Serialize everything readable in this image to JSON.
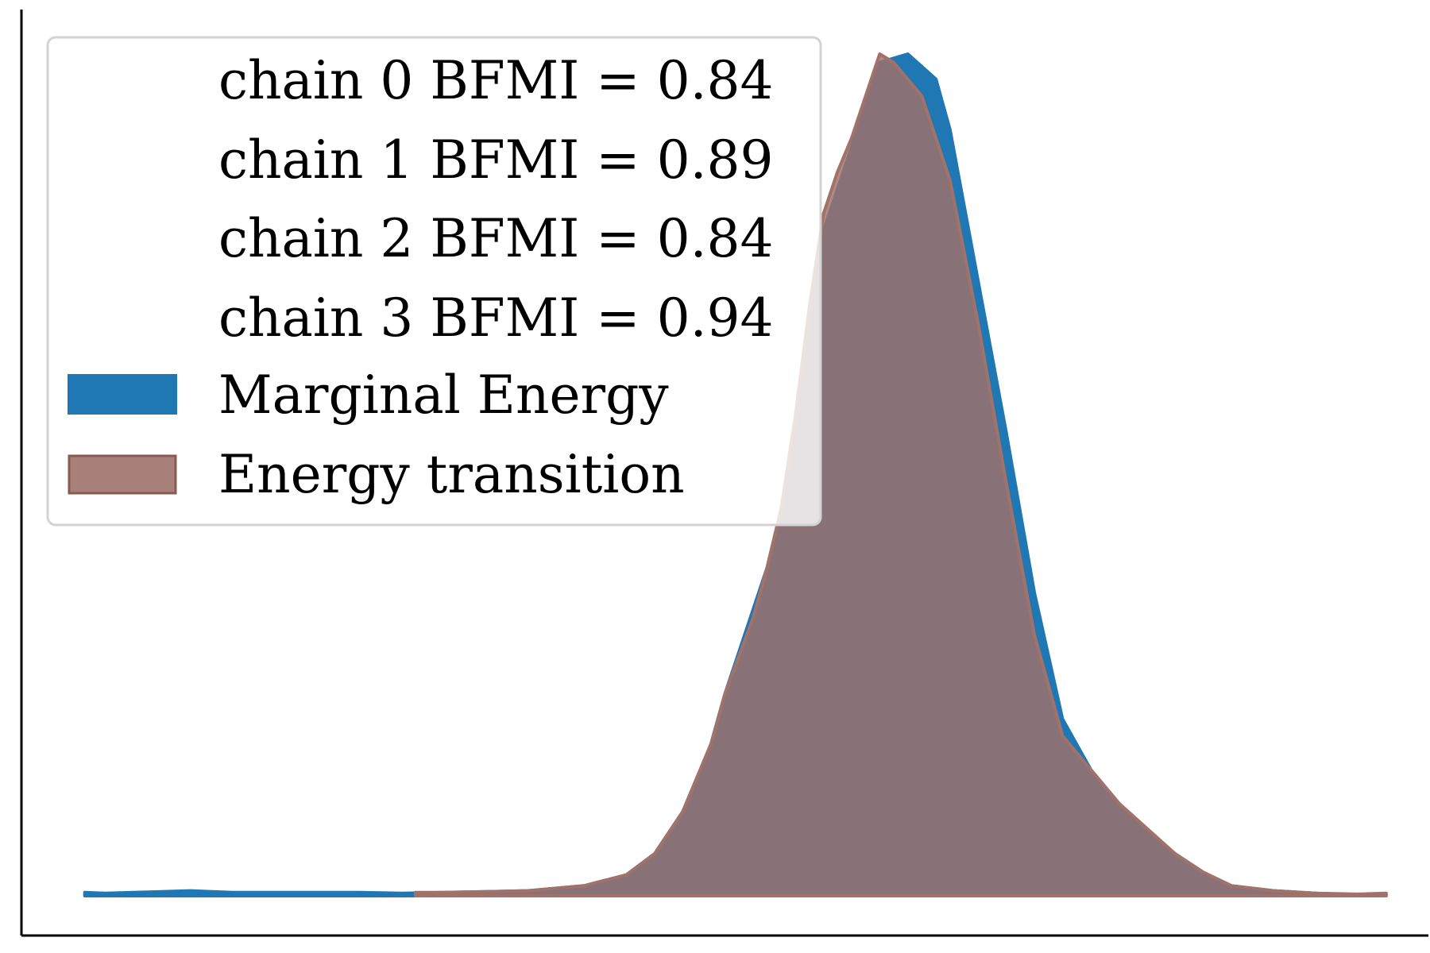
{
  "chart_data": {
    "type": "area",
    "title": "",
    "xlabel": "",
    "ylabel": "",
    "x_ticks": "hidden",
    "y_ticks": "hidden",
    "grid": false,
    "legend_placement": "top-left",
    "series": [
      {
        "name": "Marginal Energy",
        "color": "#1f77b4",
        "x": [
          0.045,
          0.06,
          0.08,
          0.1,
          0.12,
          0.15,
          0.18,
          0.21,
          0.24,
          0.27,
          0.3,
          0.33,
          0.36,
          0.4,
          0.43,
          0.45,
          0.47,
          0.49,
          0.5,
          0.52,
          0.53,
          0.54,
          0.55,
          0.56,
          0.57,
          0.58,
          0.59,
          0.61,
          0.63,
          0.65,
          0.66,
          0.68,
          0.7,
          0.72,
          0.74,
          0.76,
          0.78,
          0.8,
          0.82,
          0.84,
          0.86,
          0.89,
          0.92,
          0.95
        ],
        "y": [
          0.004,
          0.003,
          0.004,
          0.005,
          0.006,
          0.004,
          0.004,
          0.004,
          0.004,
          0.003,
          0.004,
          0.005,
          0.006,
          0.012,
          0.025,
          0.05,
          0.1,
          0.18,
          0.24,
          0.34,
          0.39,
          0.46,
          0.56,
          0.68,
          0.79,
          0.84,
          0.89,
          0.99,
          1.0,
          0.97,
          0.91,
          0.73,
          0.55,
          0.36,
          0.21,
          0.15,
          0.11,
          0.075,
          0.05,
          0.028,
          0.012,
          0.006,
          0.003,
          0.0
        ],
        "legend_swatch": "filled"
      },
      {
        "name": "Energy transition",
        "color": "#a0726a",
        "x": [
          0.28,
          0.3,
          0.33,
          0.36,
          0.4,
          0.43,
          0.45,
          0.47,
          0.49,
          0.5,
          0.52,
          0.53,
          0.54,
          0.55,
          0.56,
          0.57,
          0.58,
          0.59,
          0.61,
          0.62,
          0.64,
          0.66,
          0.68,
          0.7,
          0.72,
          0.74,
          0.76,
          0.78,
          0.8,
          0.82,
          0.84,
          0.86,
          0.89,
          0.92,
          0.95,
          0.97
        ],
        "y": [
          0.004,
          0.004,
          0.005,
          0.006,
          0.012,
          0.025,
          0.05,
          0.1,
          0.18,
          0.24,
          0.33,
          0.39,
          0.46,
          0.57,
          0.7,
          0.81,
          0.86,
          0.9,
          1.0,
          0.99,
          0.95,
          0.85,
          0.68,
          0.49,
          0.31,
          0.19,
          0.15,
          0.11,
          0.08,
          0.05,
          0.028,
          0.012,
          0.006,
          0.003,
          0.002,
          0.003
        ],
        "legend_swatch": "filled"
      }
    ],
    "legend_entries": [
      "chain  0 BFMI = 0.84",
      "chain  1 BFMI = 0.89",
      "chain  2 BFMI = 0.84",
      "chain  3 BFMI = 0.94",
      "Marginal Energy",
      "Energy transition"
    ]
  },
  "legend": {
    "chain_0": "chain  0 BFMI = 0.84",
    "chain_1": "chain  1 BFMI = 0.89",
    "chain_2": "chain  2 BFMI = 0.84",
    "chain_3": "chain  3 BFMI = 0.94",
    "marginal_energy": "Marginal Energy",
    "energy_transition": "Energy transition"
  },
  "colors": {
    "marginal": "#1f77b4",
    "transition": "#a0726a",
    "overlap": "#705e64",
    "axis": "#000000",
    "legend_border": "#d3d3d3"
  }
}
